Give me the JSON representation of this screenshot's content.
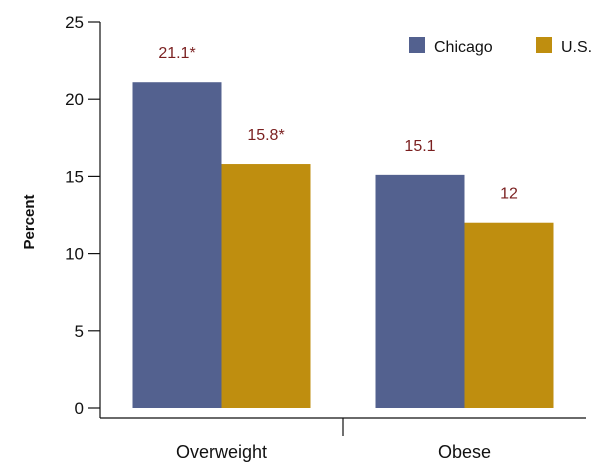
{
  "chart_data": {
    "type": "bar",
    "categories": [
      "Overweight",
      "Obese"
    ],
    "series": [
      {
        "name": "Chicago",
        "values": [
          21.1,
          15.1
        ],
        "labels": [
          "21.1*",
          "15.1"
        ],
        "color": "#53618f"
      },
      {
        "name": "U.S.",
        "values": [
          15.8,
          12
        ],
        "labels": [
          "15.8*",
          "12"
        ],
        "color": "#bf8e0f"
      }
    ],
    "title": "",
    "xlabel": "",
    "ylabel": "Percent",
    "ylim": [
      0,
      25
    ],
    "yticks": [
      0,
      5,
      10,
      15,
      20,
      25
    ],
    "grid": false,
    "legend": "top-right",
    "label_color": "#7a1f1f"
  }
}
